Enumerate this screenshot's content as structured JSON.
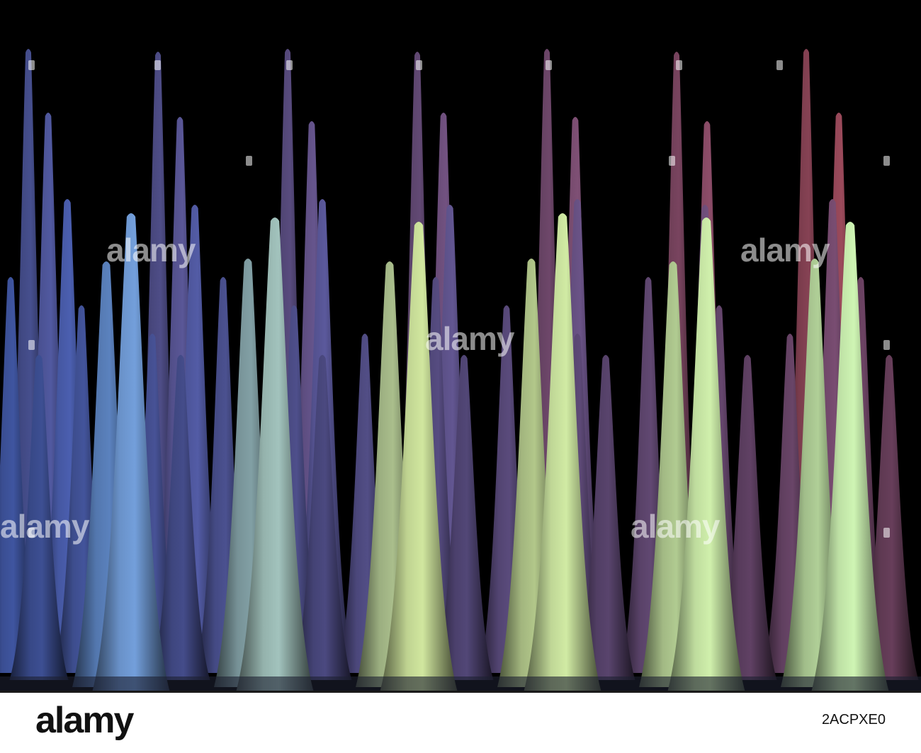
{
  "photo": {
    "background_color": "#000000",
    "palette": {
      "blue": "#3f6ed6",
      "violet": "#5b4f86",
      "green": "#b6c98a",
      "red": "#a84a55"
    }
  },
  "watermarks": {
    "text": "alamy",
    "color": "#ffffff"
  },
  "footer": {
    "logo": "alamy",
    "image_id": "2ACPXE0"
  }
}
